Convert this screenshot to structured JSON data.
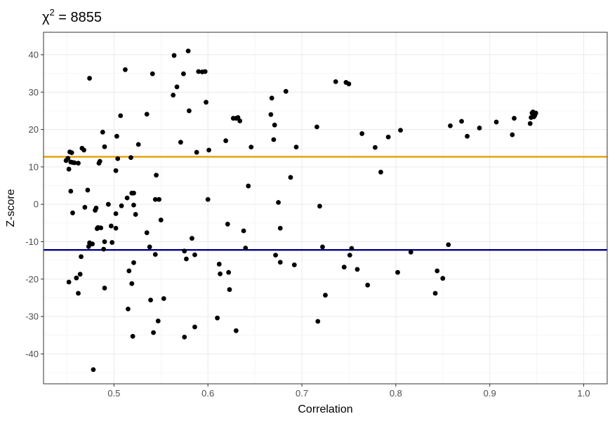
{
  "chart_data": {
    "type": "scatter",
    "title": "χ² = 8855",
    "title_parts": {
      "symbol": "χ",
      "superscript": "2",
      "rest": " = 8855"
    },
    "xlabel": "Correlation",
    "ylabel": "Z-score",
    "xlim": [
      0.425,
      1.025
    ],
    "ylim": [
      -48,
      46
    ],
    "x_ticks": [
      0.5,
      0.6,
      0.7,
      0.8,
      0.9,
      1.0
    ],
    "x_tick_labels": [
      "0.5",
      "0.6",
      "0.7",
      "0.8",
      "0.9",
      "1.0"
    ],
    "y_ticks": [
      -40,
      -30,
      -20,
      -10,
      0,
      10,
      20,
      30,
      40
    ],
    "y_tick_labels": [
      "-40",
      "-30",
      "-20",
      "-10",
      "0",
      "10",
      "20",
      "30",
      "40"
    ],
    "grid": true,
    "point_color": "#000000",
    "hlines": [
      {
        "y": 12.7,
        "color": "#E69F00"
      },
      {
        "y": -12.2,
        "color": "#00008B"
      }
    ],
    "points": [
      [
        0.449,
        11.7
      ],
      [
        0.451,
        12.3
      ],
      [
        0.452,
        9.4
      ],
      [
        0.453,
        14.0
      ],
      [
        0.454,
        11.3
      ],
      [
        0.455,
        13.8
      ],
      [
        0.456,
        11.2
      ],
      [
        0.458,
        11.1
      ],
      [
        0.462,
        11.0
      ],
      [
        0.454,
        3.5
      ],
      [
        0.456,
        -2.3
      ],
      [
        0.452,
        -20.8
      ],
      [
        0.46,
        -19.7
      ],
      [
        0.462,
        -23.8
      ],
      [
        0.464,
        -18.7
      ],
      [
        0.465,
        -14.0
      ],
      [
        0.466,
        15.0
      ],
      [
        0.468,
        14.5
      ],
      [
        0.469,
        -0.8
      ],
      [
        0.472,
        3.8
      ],
      [
        0.473,
        -11.3
      ],
      [
        0.474,
        -10.3
      ],
      [
        0.475,
        -10.6
      ],
      [
        0.477,
        -10.6
      ],
      [
        0.474,
        33.7
      ],
      [
        0.478,
        -44.2
      ],
      [
        0.48,
        -1.6
      ],
      [
        0.481,
        -1.0
      ],
      [
        0.482,
        -6.5
      ],
      [
        0.483,
        -6.2
      ],
      [
        0.484,
        11.0
      ],
      [
        0.485,
        11.5
      ],
      [
        0.486,
        -6.3
      ],
      [
        0.488,
        19.3
      ],
      [
        0.489,
        -12.0
      ],
      [
        0.49,
        15.4
      ],
      [
        0.49,
        -22.4
      ],
      [
        0.49,
        -10.0
      ],
      [
        0.494,
        0.0
      ],
      [
        0.497,
        -5.8
      ],
      [
        0.498,
        -10.2
      ],
      [
        0.502,
        9.0
      ],
      [
        0.503,
        18.2
      ],
      [
        0.502,
        -6.4
      ],
      [
        0.502,
        -2.5
      ],
      [
        0.504,
        12.2
      ],
      [
        0.507,
        23.7
      ],
      [
        0.508,
        -0.4
      ],
      [
        0.512,
        36.0
      ],
      [
        0.514,
        1.7
      ],
      [
        0.515,
        -28.0
      ],
      [
        0.516,
        -17.8
      ],
      [
        0.518,
        12.5
      ],
      [
        0.519,
        -21.2
      ],
      [
        0.519,
        3.0
      ],
      [
        0.521,
        3.0
      ],
      [
        0.52,
        -35.3
      ],
      [
        0.521,
        -0.2
      ],
      [
        0.521,
        -15.6
      ],
      [
        0.523,
        -2.7
      ],
      [
        0.526,
        16.0
      ],
      [
        0.535,
        24.1
      ],
      [
        0.535,
        -7.6
      ],
      [
        0.538,
        -11.4
      ],
      [
        0.539,
        -25.6
      ],
      [
        0.541,
        34.9
      ],
      [
        0.542,
        -34.3
      ],
      [
        0.544,
        1.3
      ],
      [
        0.544,
        -13.4
      ],
      [
        0.545,
        7.8
      ],
      [
        0.547,
        -31.2
      ],
      [
        0.548,
        1.3
      ],
      [
        0.55,
        -4.2
      ],
      [
        0.553,
        -25.2
      ],
      [
        0.563,
        29.2
      ],
      [
        0.564,
        39.8
      ],
      [
        0.567,
        31.4
      ],
      [
        0.571,
        16.6
      ],
      [
        0.574,
        34.9
      ],
      [
        0.575,
        -12.5
      ],
      [
        0.575,
        -35.5
      ],
      [
        0.577,
        -14.6
      ],
      [
        0.579,
        41.0
      ],
      [
        0.58,
        25.0
      ],
      [
        0.583,
        -9.1
      ],
      [
        0.586,
        -13.5
      ],
      [
        0.586,
        -32.8
      ],
      [
        0.588,
        13.9
      ],
      [
        0.59,
        35.5
      ],
      [
        0.594,
        35.4
      ],
      [
        0.597,
        35.5
      ],
      [
        0.598,
        27.3
      ],
      [
        0.6,
        1.3
      ],
      [
        0.601,
        14.5
      ],
      [
        0.61,
        -30.4
      ],
      [
        0.612,
        -16.0
      ],
      [
        0.613,
        -18.6
      ],
      [
        0.619,
        17.0
      ],
      [
        0.621,
        -5.3
      ],
      [
        0.622,
        -18.2
      ],
      [
        0.623,
        -22.8
      ],
      [
        0.627,
        23.0
      ],
      [
        0.63,
        23.0
      ],
      [
        0.63,
        -33.8
      ],
      [
        0.632,
        23.2
      ],
      [
        0.634,
        22.3
      ],
      [
        0.638,
        -7.1
      ],
      [
        0.64,
        -11.7
      ],
      [
        0.643,
        4.9
      ],
      [
        0.646,
        15.3
      ],
      [
        0.667,
        24.0
      ],
      [
        0.668,
        28.4
      ],
      [
        0.67,
        17.3
      ],
      [
        0.671,
        21.2
      ],
      [
        0.672,
        -13.6
      ],
      [
        0.675,
        0.5
      ],
      [
        0.677,
        -6.4
      ],
      [
        0.677,
        -15.5
      ],
      [
        0.683,
        30.2
      ],
      [
        0.688,
        7.2
      ],
      [
        0.692,
        -16.2
      ],
      [
        0.694,
        15.3
      ],
      [
        0.716,
        20.7
      ],
      [
        0.717,
        -31.3
      ],
      [
        0.719,
        -0.5
      ],
      [
        0.722,
        -11.4
      ],
      [
        0.725,
        -24.3
      ],
      [
        0.736,
        32.8
      ],
      [
        0.745,
        -16.8
      ],
      [
        0.747,
        32.6
      ],
      [
        0.75,
        32.2
      ],
      [
        0.751,
        -13.6
      ],
      [
        0.753,
        -11.8
      ],
      [
        0.759,
        -17.4
      ],
      [
        0.764,
        18.9
      ],
      [
        0.77,
        -21.6
      ],
      [
        0.778,
        15.2
      ],
      [
        0.784,
        8.6
      ],
      [
        0.792,
        18.0
      ],
      [
        0.802,
        -18.2
      ],
      [
        0.805,
        19.8
      ],
      [
        0.816,
        -12.8
      ],
      [
        0.842,
        -23.8
      ],
      [
        0.844,
        -17.8
      ],
      [
        0.85,
        -19.8
      ],
      [
        0.856,
        -10.8
      ],
      [
        0.858,
        21.0
      ],
      [
        0.87,
        22.2
      ],
      [
        0.876,
        18.2
      ],
      [
        0.889,
        20.4
      ],
      [
        0.907,
        22.0
      ],
      [
        0.924,
        18.6
      ],
      [
        0.926,
        23.0
      ],
      [
        0.943,
        21.6
      ],
      [
        0.944,
        23.2
      ],
      [
        0.945,
        24.4
      ],
      [
        0.946,
        24.7
      ],
      [
        0.947,
        23.4
      ],
      [
        0.948,
        23.8
      ],
      [
        0.949,
        24.4
      ]
    ]
  }
}
